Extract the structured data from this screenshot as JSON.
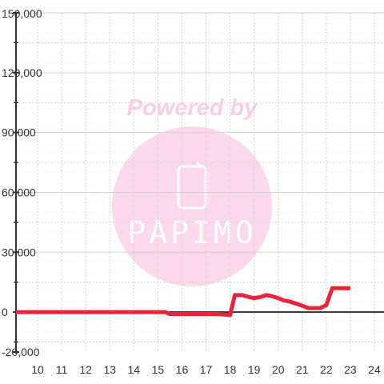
{
  "chart_data": {
    "type": "line",
    "title": "",
    "xlabel": "",
    "ylabel": "",
    "grid": true,
    "legend": "none",
    "xlim": [
      9.1,
      24.4
    ],
    "ylim": [
      -20000,
      150000
    ],
    "x_ticks": [
      10,
      11,
      12,
      13,
      14,
      15,
      16,
      17,
      18,
      19,
      20,
      21,
      22,
      23,
      24
    ],
    "x_tick_labels": [
      "10",
      "11",
      "12",
      "13",
      "14",
      "15",
      "16",
      "17",
      "18",
      "19",
      "20",
      "21",
      "22",
      "23",
      "24"
    ],
    "y_ticks": [
      -20000,
      0,
      30000,
      60000,
      90000,
      120000,
      150000
    ],
    "y_tick_labels": [
      "-20,000",
      "0",
      "30,000",
      "60,000",
      "90,000",
      "120,000",
      "150,000"
    ],
    "series": [
      {
        "color": "#e8233a",
        "x": [
          9.1,
          10,
          11,
          12,
          13,
          14,
          15,
          15.3,
          15.5,
          16,
          16.5,
          17,
          17.5,
          17.75,
          18,
          18.2,
          18.5,
          18.8,
          19,
          19.25,
          19.5,
          19.75,
          20,
          20.25,
          20.5,
          20.75,
          21,
          21.25,
          21.5,
          21.75,
          22,
          22.25,
          22.5,
          23
        ],
        "y": [
          0,
          0,
          0,
          0,
          0,
          0,
          0,
          0,
          -1000,
          -1000,
          -1000,
          -1000,
          -1000,
          -1200,
          -1500,
          8500,
          8500,
          7500,
          7000,
          7500,
          8500,
          8000,
          7000,
          5800,
          5200,
          4200,
          3200,
          2000,
          2000,
          2000,
          3500,
          12000,
          12000,
          12000
        ]
      }
    ]
  },
  "watermark": {
    "title": "Powered by",
    "brand": "PAPIMO",
    "circle_color": "#fbd8ec",
    "text_color": "#f9cfe6"
  },
  "colors": {
    "grid": "#d3d3d3",
    "axis": "#333333",
    "line": "#e8233a",
    "background": "#ffffff"
  }
}
